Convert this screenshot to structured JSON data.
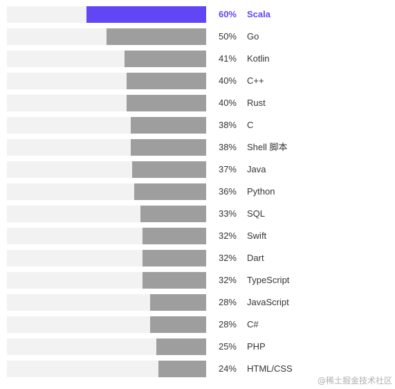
{
  "chart_data": {
    "type": "bar",
    "orientation": "horizontal",
    "xlim": [
      0,
      100
    ],
    "unit": "%",
    "highlight_color": "#6146f5",
    "bar_color": "#9e9e9e",
    "track_color": "#f2f2f2",
    "categories": [
      "Scala",
      "Go",
      "Kotlin",
      "C++",
      "Rust",
      "C",
      "Shell 脚本",
      "Java",
      "Python",
      "SQL",
      "Swift",
      "Dart",
      "TypeScript",
      "JavaScript",
      "C#",
      "PHP",
      "HTML/CSS"
    ],
    "values": [
      60,
      50,
      41,
      40,
      40,
      38,
      38,
      37,
      36,
      33,
      32,
      32,
      32,
      28,
      28,
      25,
      24
    ],
    "highlighted": "Scala"
  },
  "watermark": "@稀土掘金技术社区"
}
